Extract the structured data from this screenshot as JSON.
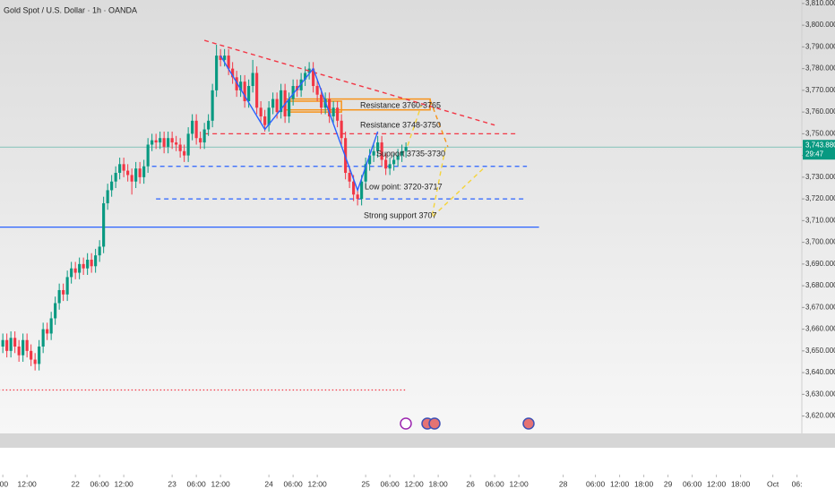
{
  "chart_data": {
    "type": "candlestick",
    "title": "Gold Spot / U.S. Dollar · 1h · OANDA",
    "up_color": "#089981",
    "down_color": "#f23645",
    "x": [
      -18,
      -17,
      -16,
      -15,
      -14,
      -13,
      -12,
      -11,
      -10,
      -9,
      -8,
      -7,
      -6,
      -5,
      -4,
      -3,
      -2,
      -1,
      0,
      1,
      2,
      3,
      4,
      5,
      6,
      7,
      8,
      9,
      10,
      11,
      12,
      13,
      14,
      15,
      16,
      17,
      18,
      19,
      20,
      21,
      22,
      23,
      24,
      25,
      26,
      27,
      28,
      29,
      30,
      31,
      32,
      33,
      34,
      35,
      36,
      37,
      38,
      39,
      40,
      41,
      42,
      43,
      44,
      45,
      46,
      47,
      48,
      49,
      50,
      51,
      52,
      53,
      54,
      55,
      56,
      57,
      58,
      59,
      60,
      61,
      62,
      63,
      64,
      65,
      66,
      67,
      68,
      69,
      70,
      71,
      72,
      73,
      74,
      75,
      76,
      77,
      78,
      79,
      80,
      81,
      82
    ],
    "open": [
      3652,
      3655,
      3650,
      3656,
      3652,
      3648,
      3655,
      3650,
      3646,
      3644,
      3652,
      3660,
      3658,
      3665,
      3672,
      3678,
      3676,
      3684,
      3688,
      3686,
      3690,
      3688,
      3692,
      3689,
      3694,
      3698,
      3718,
      3724,
      3728,
      3732,
      3736,
      3733,
      3731,
      3728,
      3734,
      3730,
      3735,
      3745,
      3747,
      3746,
      3748,
      3744,
      3748,
      3746,
      3745,
      3742,
      3740,
      3750,
      3756,
      3748,
      3746,
      3752,
      3756,
      3770,
      3786,
      3784,
      3786,
      3780,
      3776,
      3770,
      3774,
      3765,
      3772,
      3778,
      3762,
      3758,
      3754,
      3762,
      3766,
      3760,
      3770,
      3758,
      3766,
      3772,
      3770,
      3775,
      3778,
      3780,
      3772,
      3768,
      3762,
      3766,
      3758,
      3762,
      3756,
      3748,
      3732,
      3728,
      3722,
      3720,
      3728,
      3736,
      3740,
      3742,
      3746,
      3738,
      3734,
      3736,
      3738,
      3740,
      3742
    ],
    "high": [
      3658,
      3658,
      3659,
      3659,
      3655,
      3658,
      3658,
      3653,
      3649,
      3655,
      3663,
      3663,
      3668,
      3675,
      3681,
      3681,
      3687,
      3691,
      3691,
      3693,
      3693,
      3695,
      3695,
      3697,
      3701,
      3721,
      3727,
      3731,
      3735,
      3739,
      3739,
      3736,
      3734,
      3737,
      3737,
      3738,
      3748,
      3750,
      3750,
      3751,
      3751,
      3751,
      3751,
      3749,
      3748,
      3745,
      3753,
      3759,
      3759,
      3751,
      3755,
      3759,
      3773,
      3791,
      3789,
      3789,
      3789,
      3783,
      3779,
      3777,
      3777,
      3775,
      3784,
      3781,
      3765,
      3761,
      3765,
      3769,
      3769,
      3773,
      3773,
      3769,
      3775,
      3775,
      3778,
      3781,
      3783,
      3783,
      3775,
      3771,
      3769,
      3769,
      3765,
      3765,
      3759,
      3751,
      3735,
      3731,
      3725,
      3731,
      3739,
      3743,
      3745,
      3749,
      3749,
      3741,
      3739,
      3741,
      3743,
      3745,
      3746
    ],
    "low": [
      3649,
      3647,
      3647,
      3649,
      3645,
      3645,
      3647,
      3643,
      3641,
      3641,
      3649,
      3655,
      3655,
      3662,
      3669,
      3673,
      3673,
      3681,
      3683,
      3683,
      3685,
      3685,
      3686,
      3686,
      3691,
      3695,
      3715,
      3721,
      3725,
      3729,
      3730,
      3728,
      3722,
      3725,
      3727,
      3727,
      3732,
      3742,
      3743,
      3743,
      3741,
      3741,
      3743,
      3742,
      3739,
      3737,
      3737,
      3747,
      3745,
      3743,
      3743,
      3749,
      3753,
      3767,
      3781,
      3781,
      3777,
      3773,
      3767,
      3767,
      3762,
      3762,
      3769,
      3759,
      3755,
      3751,
      3751,
      3759,
      3757,
      3757,
      3755,
      3755,
      3763,
      3767,
      3767,
      3772,
      3775,
      3769,
      3765,
      3759,
      3759,
      3755,
      3755,
      3753,
      3745,
      3729,
      3725,
      3719,
      3717,
      3717,
      3725,
      3733,
      3737,
      3739,
      3735,
      3731,
      3731,
      3733,
      3735,
      3737,
      3739
    ],
    "close": [
      3655,
      3650,
      3656,
      3652,
      3648,
      3655,
      3650,
      3646,
      3644,
      3652,
      3660,
      3658,
      3665,
      3672,
      3678,
      3676,
      3684,
      3688,
      3686,
      3690,
      3688,
      3692,
      3689,
      3694,
      3698,
      3718,
      3724,
      3728,
      3732,
      3736,
      3733,
      3731,
      3728,
      3734,
      3730,
      3735,
      3745,
      3747,
      3746,
      3748,
      3744,
      3748,
      3746,
      3745,
      3742,
      3740,
      3750,
      3756,
      3748,
      3746,
      3752,
      3756,
      3770,
      3786,
      3784,
      3786,
      3780,
      3776,
      3770,
      3774,
      3765,
      3772,
      3778,
      3762,
      3758,
      3754,
      3762,
      3766,
      3760,
      3770,
      3758,
      3766,
      3772,
      3770,
      3775,
      3778,
      3780,
      3772,
      3768,
      3762,
      3766,
      3758,
      3762,
      3756,
      3748,
      3732,
      3728,
      3722,
      3720,
      3728,
      3736,
      3740,
      3742,
      3746,
      3738,
      3734,
      3736,
      3738,
      3740,
      3742,
      3743.88
    ],
    "xlim": [
      -18.7,
      180.2
    ],
    "ylim": [
      3612,
      3811.6
    ],
    "grid": false,
    "xticks": [
      {
        "value": -18,
        "label": ":00"
      },
      {
        "value": -12,
        "label": "12:00"
      },
      {
        "value": 0,
        "label": "22"
      },
      {
        "value": 6,
        "label": "06:00"
      },
      {
        "value": 12,
        "label": "12:00"
      },
      {
        "value": 24,
        "label": "23"
      },
      {
        "value": 30,
        "label": "06:00"
      },
      {
        "value": 36,
        "label": "12:00"
      },
      {
        "value": 48,
        "label": "24"
      },
      {
        "value": 54,
        "label": "06:00"
      },
      {
        "value": 60,
        "label": "12:00"
      },
      {
        "value": 72,
        "label": "25"
      },
      {
        "value": 78,
        "label": "06:00"
      },
      {
        "value": 84,
        "label": "12:00"
      },
      {
        "value": 90,
        "label": "18:00"
      },
      {
        "value": 98,
        "label": "26"
      },
      {
        "value": 104,
        "label": "06:00"
      },
      {
        "value": 110,
        "label": "12:00"
      },
      {
        "value": 121,
        "label": "28"
      },
      {
        "value": 129,
        "label": "06:00"
      },
      {
        "value": 135,
        "label": "12:00"
      },
      {
        "value": 141,
        "label": "18:00"
      },
      {
        "value": 147,
        "label": "29"
      },
      {
        "value": 153,
        "label": "06:00"
      },
      {
        "value": 159,
        "label": "12:00"
      },
      {
        "value": 165,
        "label": "18:00"
      },
      {
        "value": 173,
        "label": "Oct"
      },
      {
        "value": 179,
        "label": "06:"
      }
    ],
    "yticks": [
      {
        "value": 3620,
        "label": "3,620.000"
      },
      {
        "value": 3630,
        "label": "3,630.000"
      },
      {
        "value": 3640,
        "label": "3,640.000"
      },
      {
        "value": 3650,
        "label": "3,650.000"
      },
      {
        "value": 3660,
        "label": "3,660.000"
      },
      {
        "value": 3670,
        "label": "3,670.000"
      },
      {
        "value": 3680,
        "label": "3,680.000"
      },
      {
        "value": 3690,
        "label": "3,690.000"
      },
      {
        "value": 3700,
        "label": "3,700.000"
      },
      {
        "value": 3710,
        "label": "3,710.000"
      },
      {
        "value": 3720,
        "label": "3,720.000"
      },
      {
        "value": 3730,
        "label": "3,730.000"
      },
      {
        "value": 3740,
        "label": "3,740.000"
      },
      {
        "value": 3750,
        "label": "3,750.000"
      },
      {
        "value": 3760,
        "label": "3,760.000"
      },
      {
        "value": 3770,
        "label": "3,770.000"
      },
      {
        "value": 3780,
        "label": "3,780.000"
      },
      {
        "value": 3790,
        "label": "3,790.000"
      },
      {
        "value": 3800,
        "label": "3,800.000"
      },
      {
        "value": 3810,
        "label": "3,810.000"
      }
    ],
    "price_label": {
      "value": 3743.88,
      "label": "3,743.880",
      "color": "#089981"
    },
    "countdown": "29:47",
    "annotations": [
      "Resistance 3760-3765",
      "Resistance 3748-3750",
      "Support 3735-3730",
      "Low point: 3720-3717",
      "Strong support 3707"
    ],
    "levels": [
      {
        "value": 3750,
        "x": [
          32,
          110
        ],
        "color": "#f23645",
        "style": "dashed"
      },
      {
        "value": 3735,
        "x": [
          19,
          112
        ],
        "color": "#2962ff",
        "style": "dashed"
      },
      {
        "value": 3720,
        "x": [
          20,
          112
        ],
        "color": "#2962ff",
        "style": "dashed"
      },
      {
        "value": 3707,
        "x": [
          -19,
          115
        ],
        "color": "#2962ff",
        "style": "solid"
      },
      {
        "value": 3632,
        "x": [
          -19,
          82
        ],
        "color": "#f23645",
        "style": "dotted"
      }
    ],
    "lines": [
      {
        "x": [
          32,
          104
        ],
        "y": [
          3793,
          3754
        ],
        "color": "#f23645",
        "style": "dashed"
      },
      {
        "x": [
          36,
          47,
          59,
          70,
          75
        ],
        "y": [
          3786,
          3752,
          3780,
          3724,
          3751
        ],
        "color": "#2962ff",
        "style": "solid"
      },
      {
        "x": [
          88,
          92.4
        ],
        "y": [
          3765.5,
          3744
        ],
        "color": "#f7931a",
        "style": "dashed"
      },
      {
        "x": [
          82.4,
          85.8
        ],
        "y": [
          3744.5,
          3763
        ],
        "color": "#f5d43a",
        "style": "dashed"
      },
      {
        "x": [
          91.8,
          88.4,
          101.3
        ],
        "y": [
          3743.6,
          3711.5,
          3734.2
        ],
        "color": "#f5d43a",
        "style": "dashed"
      }
    ],
    "boxes": [
      {
        "x": [
          52,
          88
        ],
        "y": [
          3761,
          3766
        ],
        "color": "#f7931a"
      },
      {
        "x": [
          53,
          66
        ],
        "y": [
          3760,
          3765
        ],
        "color": "#f7931a"
      }
    ]
  }
}
